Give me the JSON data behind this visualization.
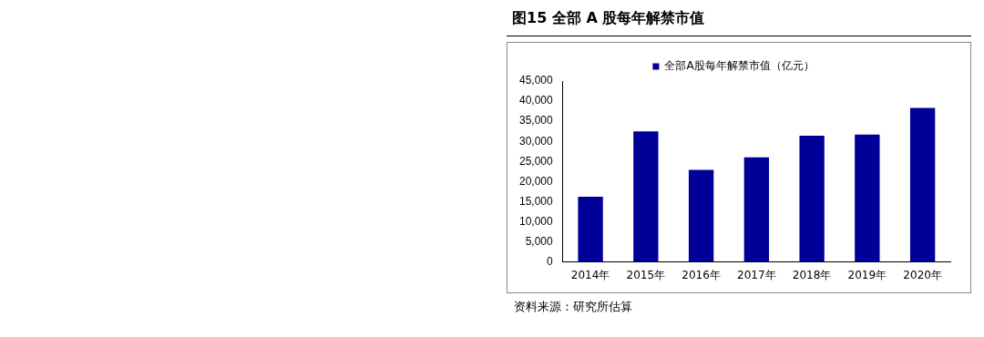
{
  "chart_data": {
    "type": "bar",
    "title": "图15 全部 A 股每年解禁市值",
    "categories": [
      "2014年",
      "2015年",
      "2016年",
      "2017年",
      "2018年",
      "2019年",
      "2020年"
    ],
    "series": [
      {
        "name": "全部A股每年解禁市值（亿元）",
        "color": "#000099",
        "values": [
          16200,
          32500,
          22900,
          26000,
          31400,
          31700,
          38300
        ]
      }
    ],
    "ylim": [
      0,
      45000
    ],
    "yticks": [
      0,
      {
        "value": 5000,
        "label": "5,000"
      },
      {
        "value": 10000,
        "label": "10,000"
      },
      {
        "value": 15000,
        "label": "15,000"
      },
      {
        "value": 20000,
        "label": "20,000"
      },
      {
        "value": 25000,
        "label": "25,000"
      },
      {
        "value": 30000,
        "label": "30,000"
      },
      {
        "value": 35000,
        "label": "35,000"
      },
      {
        "value": 40000,
        "label": "40,000"
      },
      {
        "value": 45000,
        "label": "45,000"
      }
    ],
    "grid": false,
    "legend": "top",
    "annotations": [
      "资料来源：研究所估算"
    ]
  }
}
